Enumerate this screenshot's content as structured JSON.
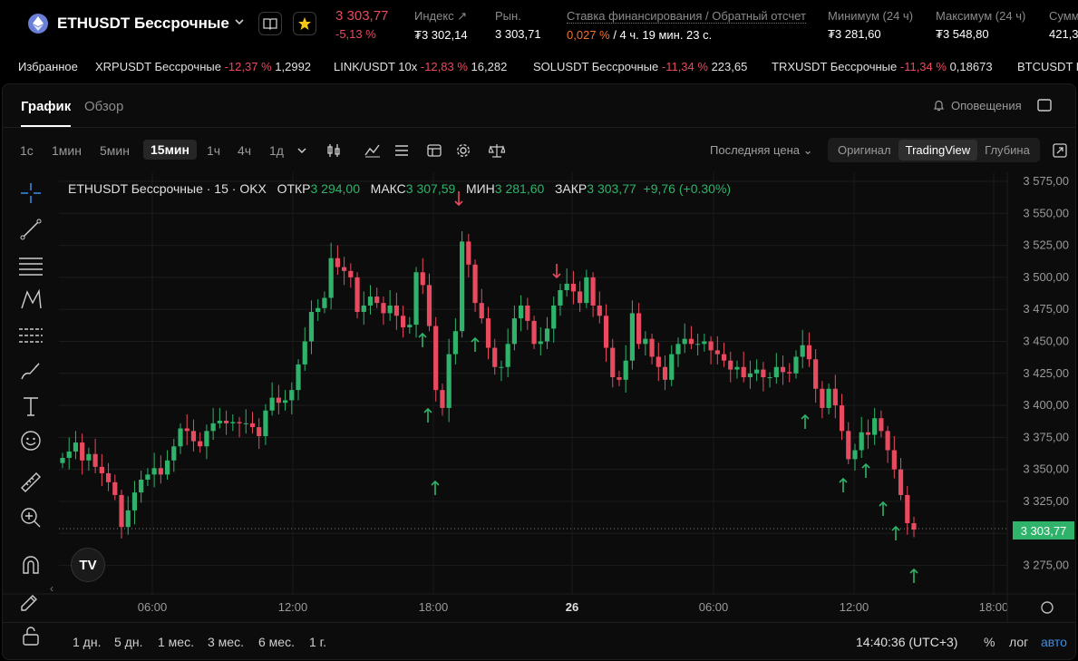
{
  "header": {
    "symbol": "ETHUSDT Бессрочные",
    "last_price": "3 303,77",
    "change": "-5,13 %",
    "stats": [
      {
        "label": "Индекс",
        "value": "₮3 302,14"
      },
      {
        "label": "Рын.",
        "value": "3 303,71"
      },
      {
        "label": "Ставка финансирования / Обратный отсчет",
        "value_rate": "0,027 %",
        "value_rest": " / 4 ч. 19 мин. 23 с."
      },
      {
        "label": "Минимум (24 ч)",
        "value": "₮3 281,60"
      },
      {
        "label": "Максимум (24 ч)",
        "value": "₮3 548,80"
      },
      {
        "label": "Сумм",
        "value": "421,3"
      }
    ]
  },
  "ticker": {
    "favorites_label": "Избранное",
    "items": [
      {
        "name": "XRPUSDT Бессрочные",
        "change": "-12,37 %",
        "price": "1,2992"
      },
      {
        "name": "LINK/USDT 10x",
        "change": "-12,83 %",
        "price": "16,282"
      },
      {
        "name": "SOLUSDT Бессрочные",
        "change": "-11,34 %",
        "price": "223,65"
      },
      {
        "name": "TRXUSDT Бессрочные",
        "change": "-11,34 %",
        "price": "0,18673"
      },
      {
        "name": "BTCUSDT Бе",
        "change": "",
        "price": ""
      }
    ]
  },
  "tabs": {
    "chart": "График",
    "overview": "Обзор",
    "alerts": "Оповещения"
  },
  "toolbar": {
    "timeframes": [
      "1с",
      "1мин",
      "5мин",
      "15мин",
      "1ч",
      "4ч",
      "1д"
    ],
    "active_timeframe": "15мин",
    "price_type": "Последняя цена",
    "views": [
      "Оригинал",
      "TradingView",
      "Глубина"
    ],
    "active_view": "TradingView"
  },
  "legend": {
    "title": "ETHUSDT Бессрочные · 15 · OKX",
    "open_label": "ОТКР",
    "open": "3 294,00",
    "high_label": "МАКС",
    "high": "3 307,59",
    "low_label": "МИН",
    "low": "3 281,60",
    "close_label": "ЗАКР",
    "close": "3 303,77",
    "change": "+9,76 (+0.30%)"
  },
  "price_tag": "3 303,77",
  "bottom": {
    "ranges": [
      "1 дн.",
      "5 дн.",
      "1 мес.",
      "3 мес.",
      "6 мес.",
      "1 г."
    ],
    "clock": "14:40:36 (UTC+3)",
    "percent": "%",
    "log": "лог",
    "auto": "авто"
  },
  "colors": {
    "up": "#2fb36a",
    "down": "#e84a5f"
  },
  "chart_data": {
    "type": "candlestick",
    "y_ticks": [
      "3 575,00",
      "3 550,00",
      "3 525,00",
      "3 500,00",
      "3 475,00",
      "3 450,00",
      "3 425,00",
      "3 400,00",
      "3 375,00",
      "3 350,00",
      "3 325,00",
      "3 300,00",
      "3 275,00"
    ],
    "y_tick_values": [
      3575,
      3550,
      3525,
      3500,
      3475,
      3450,
      3425,
      3400,
      3375,
      3350,
      3325,
      3300,
      3275
    ],
    "x_ticks": [
      "06:00",
      "12:00",
      "18:00",
      "26",
      "06:00",
      "12:00",
      "18:00"
    ],
    "ylim": [
      3262,
      3588
    ],
    "closes": [
      3359,
      3364,
      3371,
      3357,
      3362,
      3352,
      3347,
      3340,
      3330,
      3305,
      3318,
      3332,
      3342,
      3346,
      3351,
      3346,
      3357,
      3368,
      3382,
      3380,
      3372,
      3368,
      3380,
      3386,
      3388,
      3386,
      3387,
      3386,
      3386,
      3383,
      3376,
      3396,
      3406,
      3402,
      3404,
      3412,
      3432,
      3450,
      3473,
      3476,
      3484,
      3515,
      3508,
      3505,
      3500,
      3473,
      3478,
      3485,
      3480,
      3472,
      3478,
      3470,
      3461,
      3463,
      3504,
      3494,
      3462,
      3412,
      3398,
      3440,
      3458,
      3528,
      3510,
      3480,
      3468,
      3445,
      3430,
      3430,
      3448,
      3468,
      3478,
      3466,
      3448,
      3450,
      3460,
      3478,
      3490,
      3495,
      3489,
      3480,
      3500,
      3478,
      3470,
      3445,
      3422,
      3420,
      3435,
      3472,
      3448,
      3452,
      3438,
      3430,
      3420,
      3440,
      3448,
      3452,
      3448,
      3448,
      3450,
      3443,
      3440,
      3435,
      3428,
      3430,
      3422,
      3425,
      3428,
      3422,
      3422,
      3430,
      3426,
      3425,
      3438,
      3447,
      3436,
      3413,
      3398,
      3413,
      3400,
      3380,
      3358,
      3365,
      3379,
      3377,
      3390,
      3380,
      3365,
      3350,
      3330,
      3308,
      3303
    ],
    "last_close": "3 303,77",
    "markers_up": [
      463,
      469,
      477,
      521,
      885,
      927,
      952,
      971,
      985,
      1005
    ],
    "markers_down": [
      503,
      611
    ]
  }
}
